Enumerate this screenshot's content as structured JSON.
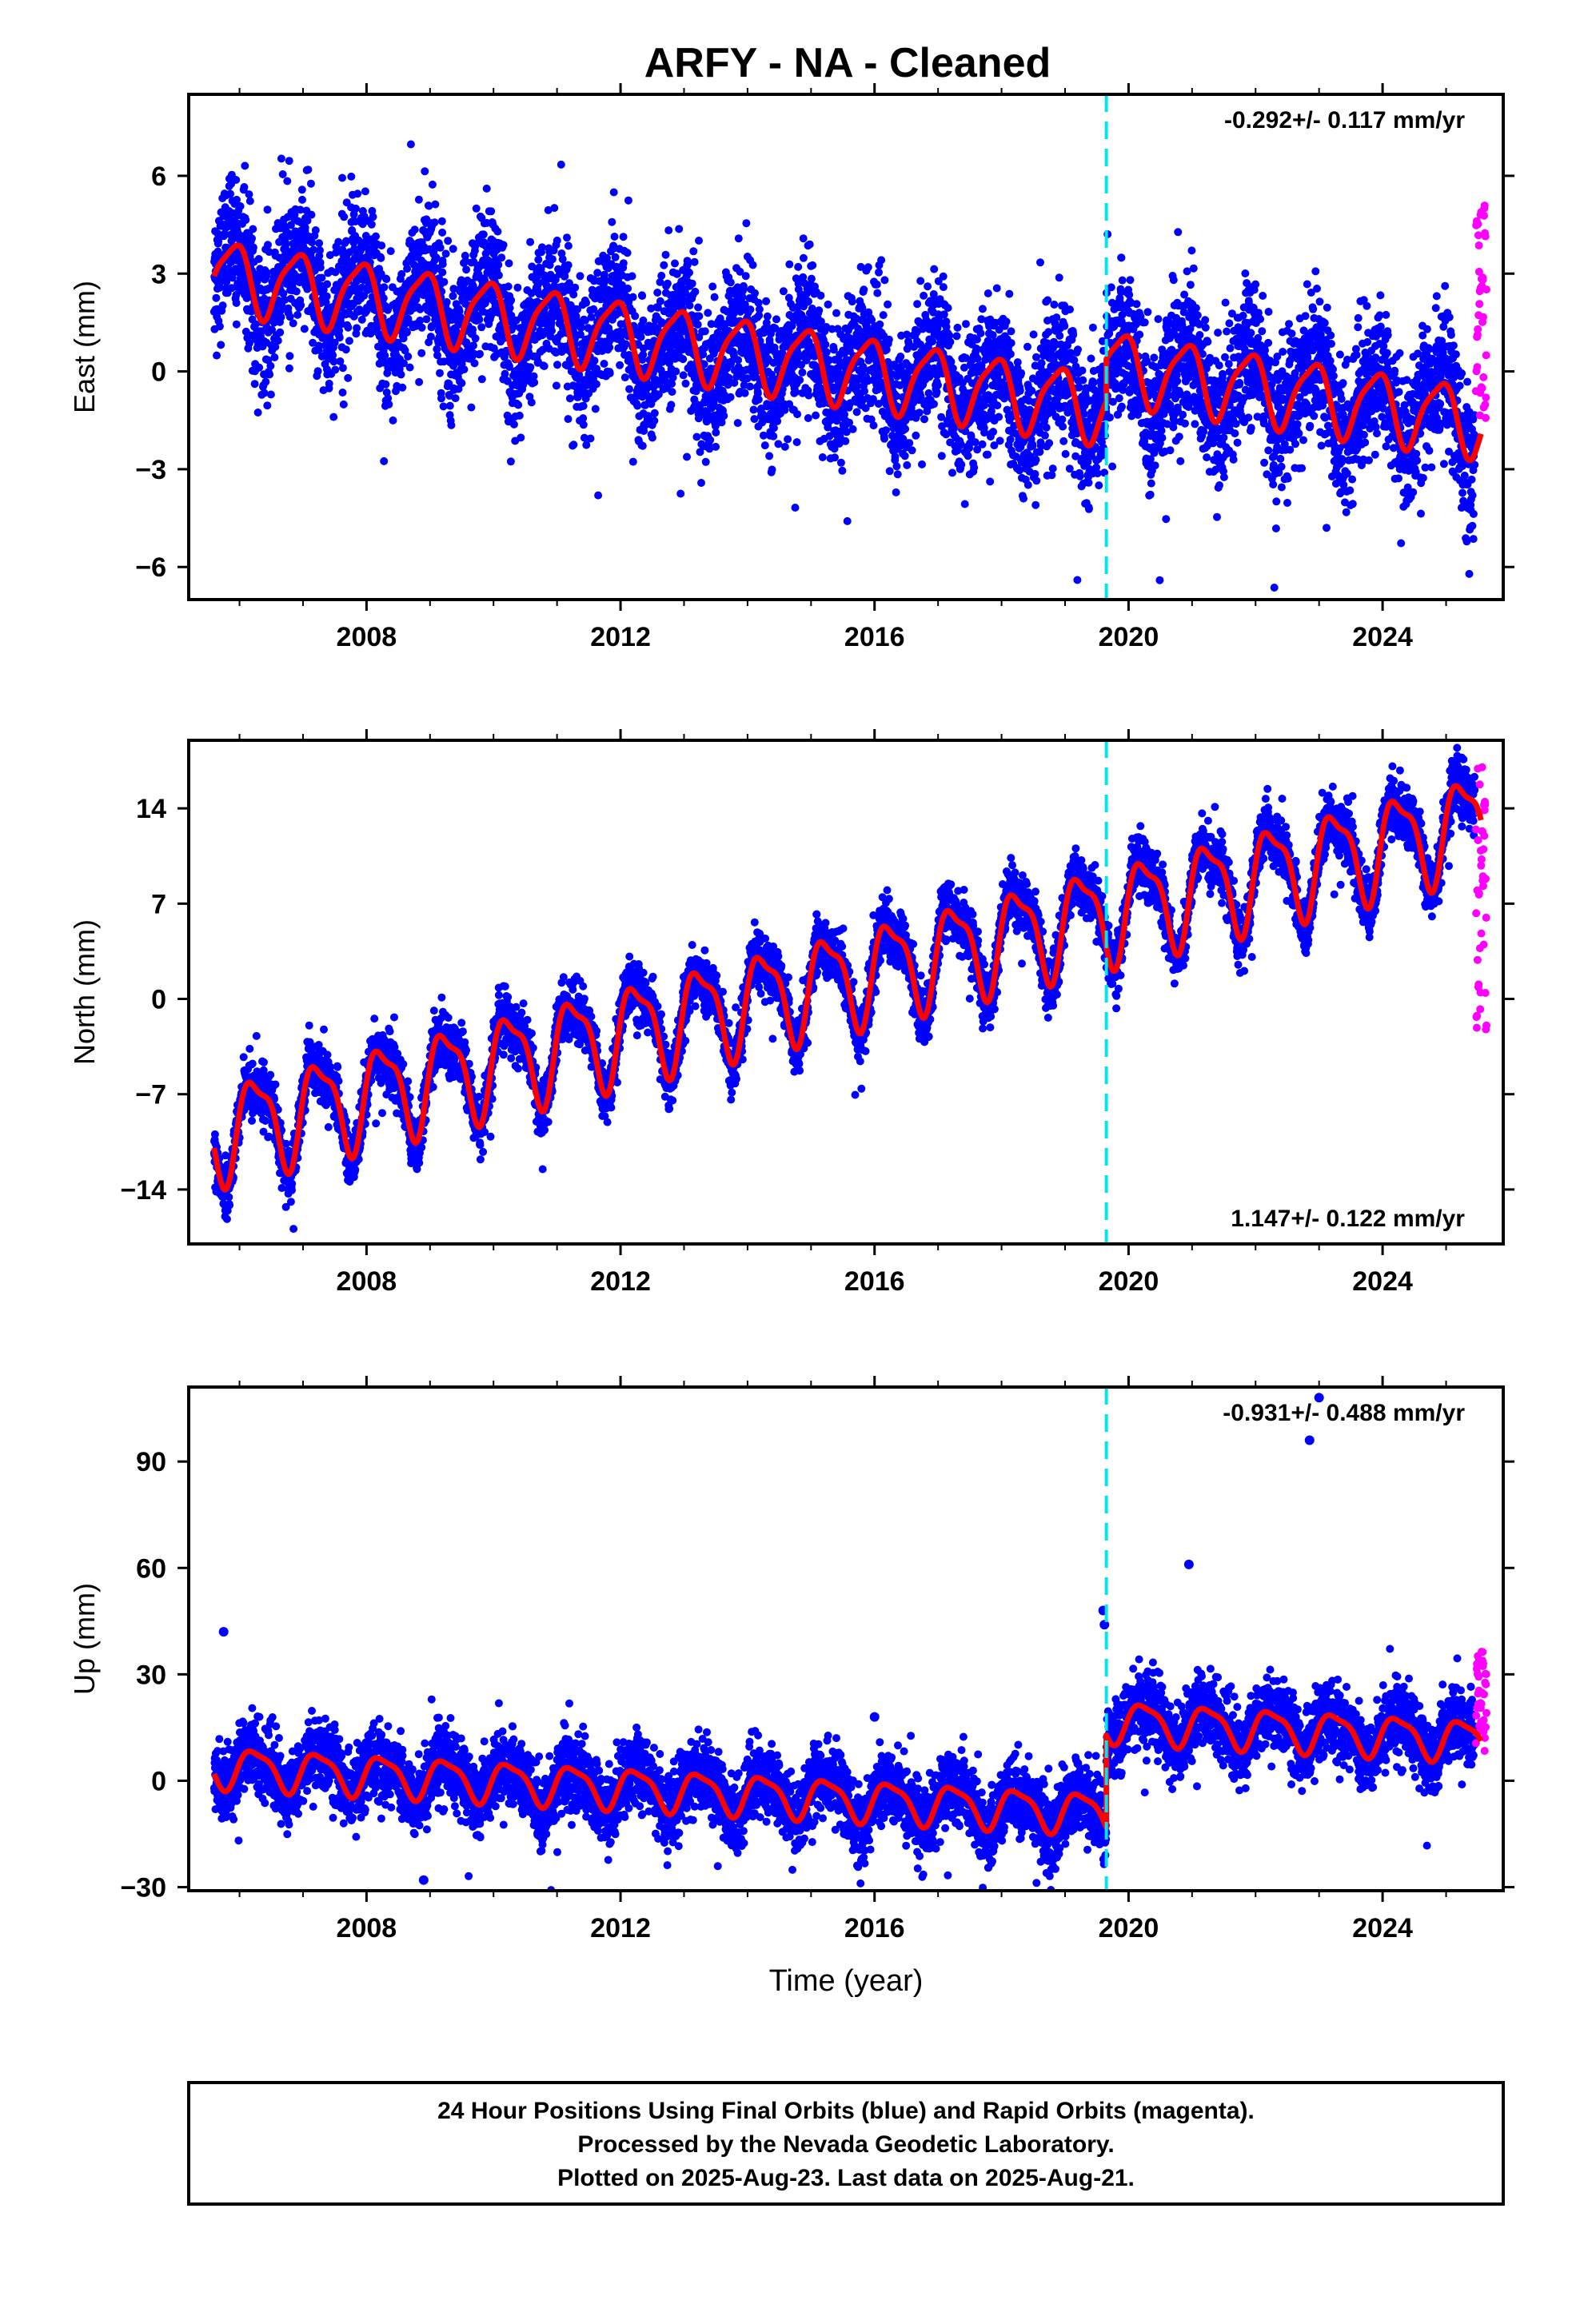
{
  "title": "ARFY  - NA - Cleaned",
  "colors": {
    "final_orbits": "#0000ff",
    "rapid_orbits": "#ff00ff",
    "model": "#ff0000",
    "event_line": "#00e5ee",
    "frame": "#000000"
  },
  "x_axis": {
    "label": "Time (year)",
    "range": [
      2005.2,
      2025.9
    ],
    "ticks": [
      2008,
      2012,
      2016,
      2020,
      2024
    ],
    "tick_labels": [
      "2008",
      "2012",
      "2016",
      "2020",
      "2024"
    ]
  },
  "event_line_year": 2019.65,
  "chart_data": [
    {
      "type": "scatter",
      "component": "east",
      "ylabel": "East (mm)",
      "ylim": [
        -7.0,
        8.5
      ],
      "yticks": [
        -6,
        -3,
        0,
        3,
        6
      ],
      "ytick_labels": [
        "−6",
        "−3",
        "0",
        "3",
        "6"
      ],
      "rate_text": "-0.292+/- 0.117 mm/yr",
      "rate_position": "top-right",
      "model": {
        "start": 2005.6,
        "end": 2025.55,
        "offset": 3.0,
        "rate_mm_per_yr": -0.292,
        "annual_amp": 1.05,
        "annual_phase": 2.2,
        "semiannual_amp": 0.25,
        "semiannual_phase": 0.5,
        "steps": [
          {
            "year": 2019.65,
            "jump": 1.3
          }
        ]
      },
      "final_orbits_series": {
        "start": 2005.6,
        "end": 2025.45,
        "scatter_sd": 1.05,
        "outlier_extent": 8.2
      },
      "rapid_orbits_series": {
        "start": 2025.45,
        "end": 2025.62,
        "values_range": [
          -1.5,
          5.3
        ]
      }
    },
    {
      "type": "scatter",
      "component": "north",
      "ylabel": "North (mm)",
      "ylim": [
        -18.0,
        19.0
      ],
      "yticks": [
        -14,
        -7,
        0,
        7,
        14
      ],
      "ytick_labels": [
        "−14",
        "−7",
        "0",
        "7",
        "14"
      ],
      "rate_text": "1.147+/- 0.122 mm/yr",
      "rate_position": "bottom-right",
      "model": {
        "start": 2005.6,
        "end": 2025.55,
        "offset": -9.8,
        "rate_mm_per_yr": 1.147,
        "annual_amp": 3.4,
        "annual_phase": 0.0,
        "semiannual_amp": 1.1,
        "semiannual_phase": 1.0,
        "steps": []
      },
      "final_orbits_series": {
        "start": 2005.6,
        "end": 2025.45,
        "scatter_sd": 1.0,
        "outlier_extent": 18.5
      },
      "rapid_orbits_series": {
        "start": 2025.45,
        "end": 2025.62,
        "values_range": [
          -2.6,
          17.2
        ]
      }
    },
    {
      "type": "scatter",
      "component": "up",
      "ylabel": "Up (mm)",
      "ylim": [
        -31.0,
        111.0
      ],
      "yticks": [
        -30,
        0,
        30,
        60,
        90
      ],
      "ytick_labels": [
        "−30",
        "0",
        "30",
        "60",
        "90"
      ],
      "rate_text": "-0.931+/- 0.488 mm/yr",
      "rate_position": "top-right",
      "model": {
        "start": 2005.6,
        "end": 2025.55,
        "offset": 4.0,
        "rate_mm_per_yr": -0.931,
        "annual_amp": 5.5,
        "annual_phase": 0.0,
        "semiannual_amp": 1.5,
        "semiannual_phase": 1.0,
        "steps": [
          {
            "year": 2019.65,
            "jump": 26.0
          }
        ]
      },
      "final_orbits_series": {
        "start": 2005.6,
        "end": 2025.45,
        "scatter_sd": 5.0,
        "outlier_extent": 108.0
      },
      "outliers": [
        [
          2005.75,
          42
        ],
        [
          2019.6,
          48
        ],
        [
          2019.62,
          44
        ],
        [
          2020.95,
          61
        ],
        [
          2022.85,
          96
        ],
        [
          2023.0,
          108
        ],
        [
          2016.0,
          18
        ],
        [
          2008.9,
          -28
        ]
      ],
      "rapid_orbits_series": {
        "start": 2025.45,
        "end": 2025.62,
        "values_range": [
          7,
          37
        ]
      }
    }
  ],
  "footer": {
    "lines": [
      "24 Hour Positions Using Final Orbits (blue) and Rapid Orbits (magenta).",
      "Processed by the Nevada Geodetic Laboratory.",
      "Plotted on 2025-Aug-23. Last data on 2025-Aug-21."
    ]
  }
}
